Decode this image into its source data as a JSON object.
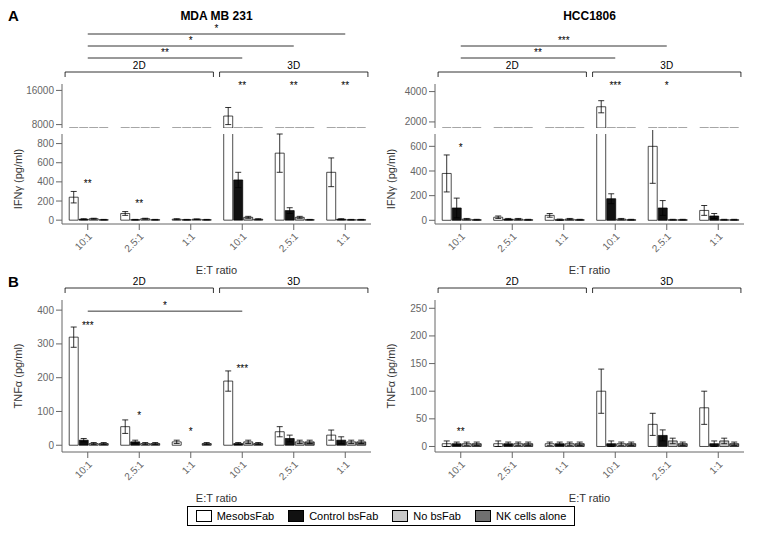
{
  "chart_data": [
    {
      "type": "bar",
      "panel_label": "A",
      "title": "MDA MB 231",
      "ylabel": "IFNγ (pg/ml)",
      "xlabel": "E:T ratio",
      "categories": [
        "10:1",
        "2.5:1",
        "1:1",
        "10:1",
        "2.5:1",
        "1:1"
      ],
      "series": [
        {
          "name": "MesobsFab",
          "color": "#ffffff",
          "values": [
            240,
            70,
            10,
            10000,
            700,
            500
          ],
          "errors": [
            60,
            20,
            5,
            2000,
            200,
            150
          ]
        },
        {
          "name": "Control bsFab",
          "color": "#111111",
          "values": [
            10,
            5,
            5,
            420,
            100,
            10
          ],
          "errors": [
            5,
            3,
            3,
            80,
            30,
            5
          ]
        },
        {
          "name": "No bsFab",
          "color": "#c8c8c8",
          "values": [
            15,
            15,
            10,
            30,
            30,
            5
          ],
          "errors": [
            5,
            5,
            3,
            10,
            10,
            3
          ]
        },
        {
          "name": "NK cells alone",
          "color": "#707070",
          "values": [
            5,
            5,
            5,
            10,
            5,
            5
          ],
          "errors": [
            3,
            3,
            3,
            5,
            3,
            3
          ]
        }
      ],
      "ylim": [
        -40,
        17500
      ],
      "y_break": [
        900,
        7200
      ],
      "yticks": [
        0,
        200,
        400,
        600,
        800,
        8000,
        16000
      ],
      "groups": [
        {
          "label": "2D",
          "from": 0,
          "to": 2
        },
        {
          "label": "3D",
          "from": 3,
          "to": 5
        }
      ],
      "brackets": [
        {
          "from": 0,
          "to": 3,
          "label": "**"
        },
        {
          "from": 0,
          "to": 4,
          "label": "*"
        },
        {
          "from": 0,
          "to": 5,
          "label": "*"
        }
      ],
      "annotations": [
        {
          "text": "**",
          "category_index": 0,
          "y": 328.2
        },
        {
          "text": "**",
          "category_index": 1,
          "y": 118.2
        },
        {
          "text": "**",
          "category_index": 3,
          "y": 16058
        },
        {
          "text": "**",
          "category_index": 4,
          "y": 16058
        },
        {
          "text": "**",
          "category_index": 5,
          "y": 16058
        }
      ],
      "grid": false,
      "legend": "bottom"
    },
    {
      "type": "bar",
      "title": "HCC1806",
      "ylabel": "IFNγ (pg/ml)",
      "xlabel": "E:T ratio",
      "categories": [
        "10:1",
        "2.5:1",
        "1:1",
        "10:1",
        "2.5:1",
        "1:1"
      ],
      "series": [
        {
          "name": "MesobsFab",
          "color": "#ffffff",
          "values": [
            380,
            25,
            40,
            3000,
            600,
            80
          ],
          "errors": [
            150,
            10,
            15,
            400,
            300,
            40
          ]
        },
        {
          "name": "Control bsFab",
          "color": "#111111",
          "values": [
            100,
            10,
            5,
            175,
            100,
            35
          ],
          "errors": [
            80,
            5,
            5,
            40,
            60,
            20
          ]
        },
        {
          "name": "No bsFab",
          "color": "#c8c8c8",
          "values": [
            10,
            10,
            10,
            10,
            5,
            5
          ],
          "errors": [
            5,
            5,
            5,
            5,
            3,
            3
          ]
        },
        {
          "name": "NK cells alone",
          "color": "#707070",
          "values": [
            5,
            5,
            5,
            5,
            5,
            5
          ],
          "errors": [
            3,
            3,
            3,
            3,
            3,
            3
          ]
        }
      ],
      "ylim": [
        -30,
        4500
      ],
      "y_break": [
        700,
        1600
      ],
      "yticks": [
        0,
        200,
        400,
        600,
        2000,
        4000
      ],
      "groups": [
        {
          "label": "2D",
          "from": 0,
          "to": 2
        },
        {
          "label": "3D",
          "from": 3,
          "to": 5
        }
      ],
      "brackets": [
        {
          "from": 0,
          "to": 3,
          "label": "**"
        },
        {
          "from": 0,
          "to": 4,
          "label": "***"
        }
      ],
      "annotations": [
        {
          "text": "*",
          "category_index": 0,
          "y": 551.9
        },
        {
          "text": "***",
          "category_index": 3,
          "y": 4094
        },
        {
          "text": "*",
          "category_index": 4,
          "y": 4094
        }
      ],
      "grid": false
    },
    {
      "type": "bar",
      "panel_label": "B",
      "ylabel": "TNFα (pg/ml)",
      "xlabel": "E:T ratio",
      "categories": [
        "10:1",
        "2.5:1",
        "1:1",
        "10:1",
        "2.5:1",
        "1:1"
      ],
      "series": [
        {
          "name": "MesobsFab",
          "color": "#ffffff",
          "values": [
            320,
            55,
            10,
            190,
            40,
            30
          ],
          "errors": [
            30,
            20,
            5,
            30,
            15,
            15
          ]
        },
        {
          "name": "Control bsFab",
          "color": "#111111",
          "values": [
            15,
            10,
            0,
            5,
            20,
            15
          ],
          "errors": [
            5,
            5,
            null,
            3,
            10,
            10
          ]
        },
        {
          "name": "No bsFab",
          "color": "#c8c8c8",
          "values": [
            5,
            5,
            0,
            10,
            10,
            10
          ],
          "errors": [
            3,
            3,
            null,
            5,
            5,
            5
          ]
        },
        {
          "name": "NK cells alone",
          "color": "#707070",
          "values": [
            5,
            5,
            5,
            5,
            10,
            10
          ],
          "errors": [
            3,
            3,
            3,
            3,
            5,
            5
          ]
        }
      ],
      "ylim": [
        -20,
        430
      ],
      "yticks": [
        0,
        100,
        200,
        300,
        400
      ],
      "groups": [
        {
          "label": "2D",
          "from": 0,
          "to": 2
        },
        {
          "label": "3D",
          "from": 3,
          "to": 5
        }
      ],
      "brackets": [
        {
          "from": 0,
          "to": 3,
          "label": "*",
          "y": 397
        }
      ],
      "annotations": [
        {
          "text": "***",
          "category_index": 0,
          "y": 340
        },
        {
          "text": "*",
          "category_index": 1,
          "y": 72
        },
        {
          "text": "*",
          "category_index": 2,
          "y": 25
        },
        {
          "text": "***",
          "category_index": 3,
          "y": 212
        }
      ],
      "grid": false
    },
    {
      "type": "bar",
      "ylabel": "TNFα (pg/ml)",
      "xlabel": "E:T ratio",
      "categories": [
        "10:1",
        "2.5:1",
        "1:1",
        "10:1",
        "2.5:1",
        "1:1"
      ],
      "series": [
        {
          "name": "MesobsFab",
          "color": "#ffffff",
          "values": [
            5,
            5,
            5,
            100,
            40,
            70
          ],
          "errors": [
            5,
            5,
            3,
            40,
            20,
            30
          ]
        },
        {
          "name": "Control bsFab",
          "color": "#111111",
          "values": [
            5,
            5,
            5,
            5,
            20,
            5
          ],
          "errors": [
            3,
            3,
            3,
            5,
            10,
            5
          ]
        },
        {
          "name": "No bsFab",
          "color": "#c8c8c8",
          "values": [
            5,
            5,
            5,
            5,
            10,
            10
          ],
          "errors": [
            3,
            3,
            3,
            3,
            5,
            5
          ]
        },
        {
          "name": "NK cells alone",
          "color": "#707070",
          "values": [
            5,
            5,
            5,
            5,
            5,
            5
          ],
          "errors": [
            3,
            3,
            3,
            3,
            3,
            3
          ]
        }
      ],
      "ylim": [
        -10,
        265
      ],
      "yticks": [
        0,
        50,
        100,
        150,
        200,
        250
      ],
      "groups": [
        {
          "label": "2D",
          "from": 0,
          "to": 2
        },
        {
          "label": "3D",
          "from": 3,
          "to": 5
        }
      ],
      "brackets": [],
      "annotations": [
        {
          "text": "**",
          "category_index": 0,
          "y": 18
        }
      ],
      "grid": false
    }
  ]
}
